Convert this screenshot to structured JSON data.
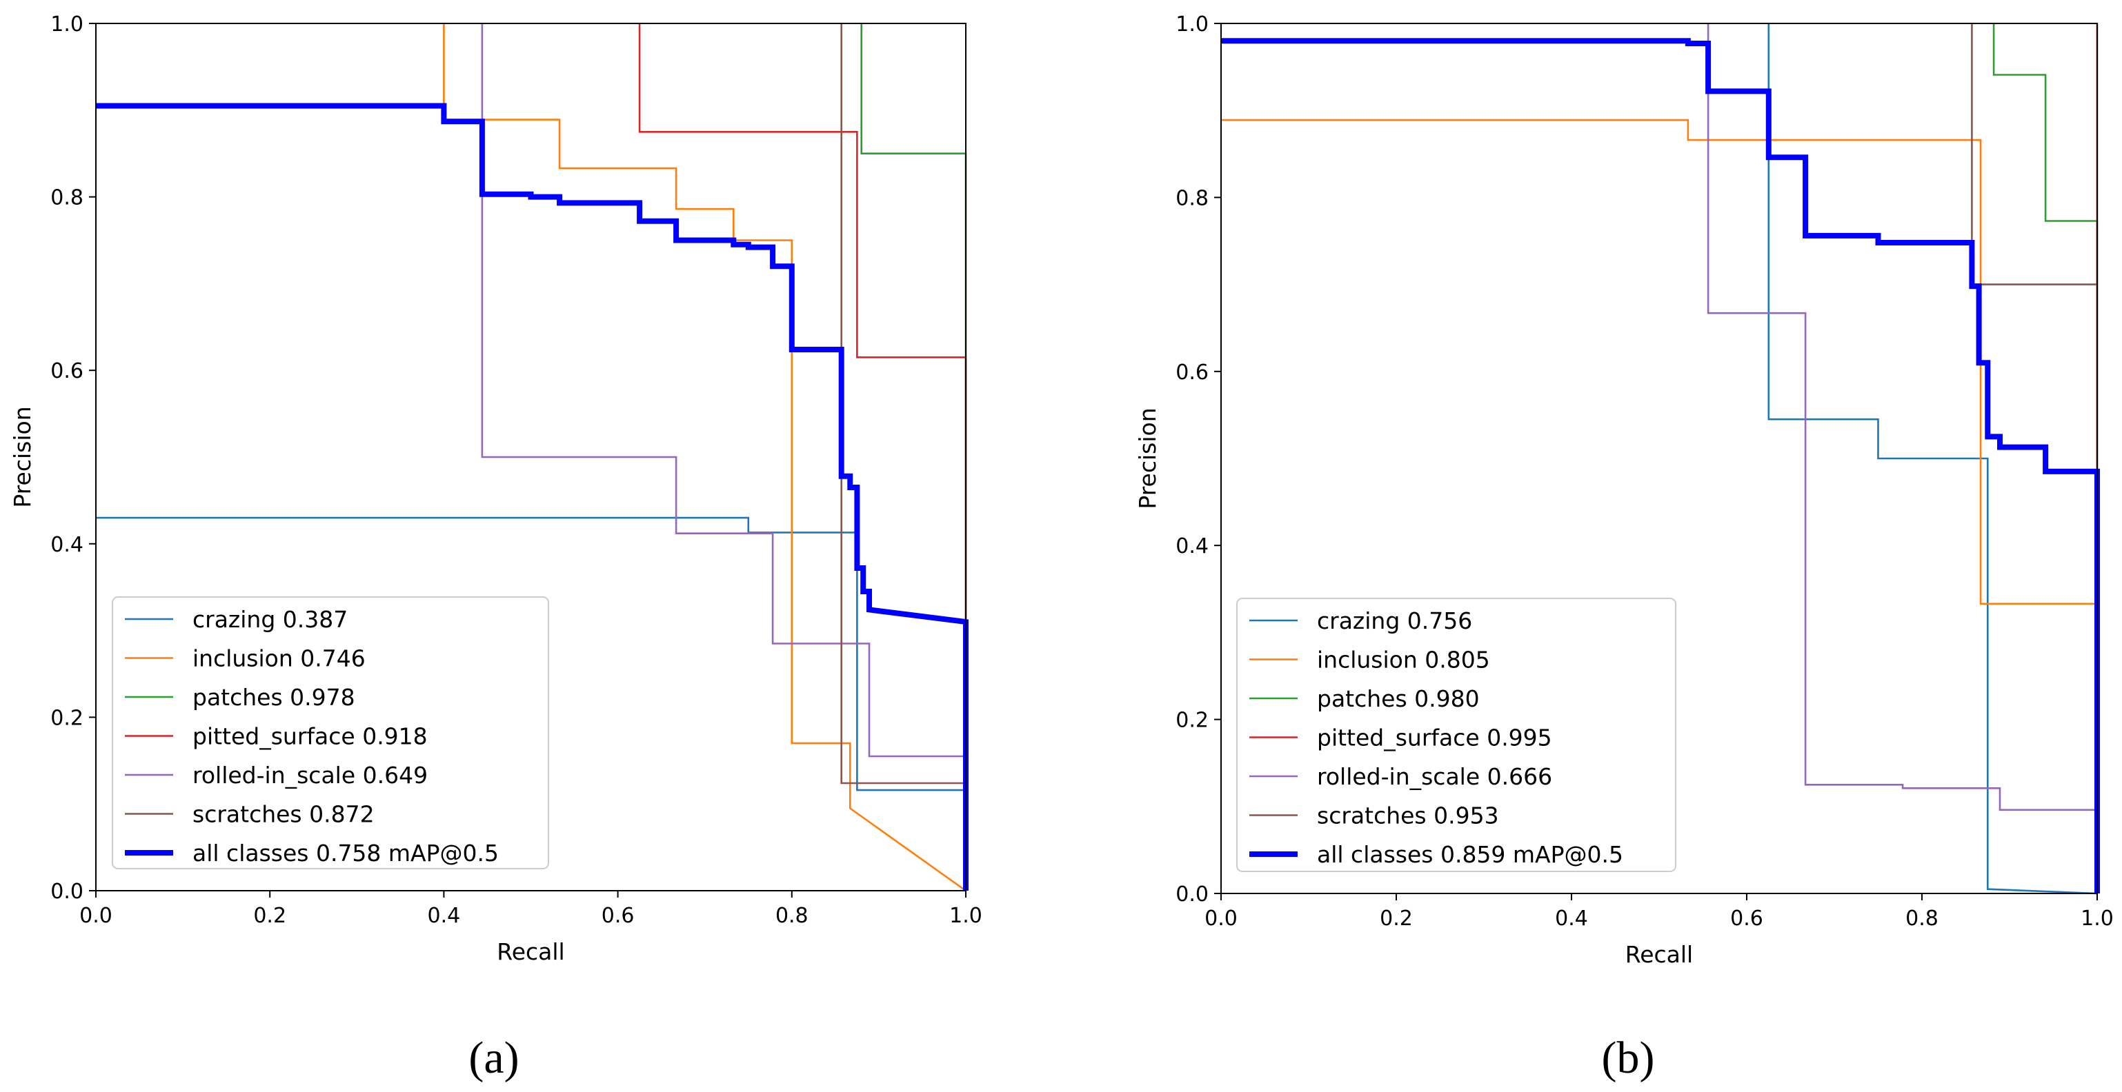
{
  "chart_data": [
    {
      "type": "line",
      "panel_label": "(a)",
      "xlabel": "Recall",
      "ylabel": "Precision",
      "xlim": [
        0,
        1
      ],
      "ylim": [
        0,
        1
      ],
      "xticks": [
        "0.0",
        "0.2",
        "0.4",
        "0.6",
        "0.8",
        "1.0"
      ],
      "yticks": [
        "0.0",
        "0.2",
        "0.4",
        "0.6",
        "0.8",
        "1.0"
      ],
      "legend_position": "lower-left",
      "series": [
        {
          "name": "crazing",
          "label": "crazing 0.387",
          "color": "#1f77b4",
          "width": "thin",
          "x": [
            0,
            0.75,
            0.75,
            0.875,
            0.875,
            1.0,
            1.0
          ],
          "y": [
            0.43,
            0.43,
            0.413,
            0.413,
            0.116,
            0.116,
            0.0
          ]
        },
        {
          "name": "inclusion",
          "label": "inclusion 0.746",
          "color": "#ff7f0e",
          "width": "thin",
          "x": [
            0.4,
            0.4,
            0.533,
            0.533,
            0.667,
            0.667,
            0.733,
            0.733,
            0.8,
            0.8,
            0.867,
            0.867,
            1.0
          ],
          "y": [
            1.0,
            0.889,
            0.889,
            0.833,
            0.833,
            0.786,
            0.786,
            0.75,
            0.75,
            0.17,
            0.17,
            0.095,
            0.0
          ]
        },
        {
          "name": "patches",
          "label": "patches 0.978",
          "color": "#2ca02c",
          "width": "thin",
          "x": [
            0.88,
            0.88,
            1.0,
            1.0
          ],
          "y": [
            1.0,
            0.85,
            0.85,
            0.0
          ]
        },
        {
          "name": "pitted_surface",
          "label": "pitted_surface 0.918",
          "color": "#d62728",
          "width": "thin",
          "x": [
            0.625,
            0.625,
            0.875,
            0.875,
            1.0,
            1.0
          ],
          "y": [
            1.0,
            0.875,
            0.875,
            0.615,
            0.615,
            0.0
          ]
        },
        {
          "name": "rolled-in_scale",
          "label": "rolled-in_scale 0.649",
          "color": "#9467bd",
          "width": "thin",
          "x": [
            0.444,
            0.444,
            0.667,
            0.667,
            0.778,
            0.778,
            0.889,
            0.889,
            1.0,
            1.0
          ],
          "y": [
            1.0,
            0.5,
            0.5,
            0.412,
            0.412,
            0.285,
            0.285,
            0.155,
            0.155,
            0.0
          ]
        },
        {
          "name": "scratches",
          "label": "scratches 0.872",
          "color": "#8c564b",
          "width": "thin",
          "x": [
            0.857,
            0.857,
            1.0,
            1.0
          ],
          "y": [
            1.0,
            0.124,
            0.124,
            0.0
          ]
        },
        {
          "name": "all-classes",
          "label": "all classes 0.758 mAP@0.5",
          "color": "#0000ff",
          "width": "thick",
          "x": [
            0.0,
            0.4,
            0.4,
            0.444,
            0.444,
            0.5,
            0.5,
            0.533,
            0.533,
            0.625,
            0.625,
            0.667,
            0.667,
            0.733,
            0.733,
            0.75,
            0.75,
            0.778,
            0.778,
            0.8,
            0.8,
            0.857,
            0.857,
            0.867,
            0.867,
            0.875,
            0.875,
            0.882,
            0.882,
            0.889,
            0.889,
            1.0,
            1.0
          ],
          "y": [
            0.905,
            0.905,
            0.887,
            0.887,
            0.803,
            0.803,
            0.8,
            0.8,
            0.793,
            0.793,
            0.772,
            0.772,
            0.75,
            0.75,
            0.745,
            0.745,
            0.742,
            0.742,
            0.72,
            0.72,
            0.624,
            0.624,
            0.478,
            0.478,
            0.465,
            0.465,
            0.372,
            0.372,
            0.345,
            0.345,
            0.324,
            0.31,
            0.0
          ]
        }
      ]
    },
    {
      "type": "line",
      "panel_label": "(b)",
      "xlabel": "Recall",
      "ylabel": "Precision",
      "xlim": [
        0,
        1
      ],
      "ylim": [
        0,
        1
      ],
      "xticks": [
        "0.0",
        "0.2",
        "0.4",
        "0.6",
        "0.8",
        "1.0"
      ],
      "yticks": [
        "0.0",
        "0.2",
        "0.4",
        "0.6",
        "0.8",
        "1.0"
      ],
      "legend_position": "lower-left",
      "series": [
        {
          "name": "crazing",
          "label": "crazing 0.756",
          "color": "#1f77b4",
          "width": "thin",
          "x": [
            0.625,
            0.625,
            0.75,
            0.75,
            0.875,
            0.875,
            1.0
          ],
          "y": [
            1.0,
            0.545,
            0.545,
            0.5,
            0.5,
            0.005,
            0.0
          ]
        },
        {
          "name": "inclusion",
          "label": "inclusion 0.805",
          "color": "#ff7f0e",
          "width": "thin",
          "x": [
            0.0,
            0.533,
            0.533,
            0.867,
            0.867,
            1.0
          ],
          "y": [
            0.889,
            0.889,
            0.866,
            0.866,
            0.333,
            0.333
          ]
        },
        {
          "name": "patches",
          "label": "patches 0.980",
          "color": "#2ca02c",
          "width": "thin",
          "x": [
            0.882,
            0.882,
            0.941,
            0.941,
            1.0,
            1.0
          ],
          "y": [
            1.0,
            0.941,
            0.941,
            0.773,
            0.773,
            0.0
          ]
        },
        {
          "name": "pitted_surface",
          "label": "pitted_surface 0.995",
          "color": "#d62728",
          "width": "thin",
          "x": [
            1.0,
            1.0
          ],
          "y": [
            1.0,
            0.0
          ]
        },
        {
          "name": "rolled-in_scale",
          "label": "rolled-in_scale 0.666",
          "color": "#9467bd",
          "width": "thin",
          "x": [
            0.556,
            0.556,
            0.667,
            0.667,
            0.778,
            0.778,
            0.889,
            0.889,
            1.0
          ],
          "y": [
            1.0,
            0.667,
            0.667,
            0.125,
            0.125,
            0.121,
            0.121,
            0.096,
            0.096
          ]
        },
        {
          "name": "scratches",
          "label": "scratches 0.953",
          "color": "#8c564b",
          "width": "thin",
          "x": [
            0.857,
            0.857,
            1.0
          ],
          "y": [
            1.0,
            0.7,
            0.7
          ]
        },
        {
          "name": "all-classes",
          "label": "all classes 0.859 mAP@0.5",
          "color": "#0000ff",
          "width": "thick",
          "x": [
            0.0,
            0.533,
            0.533,
            0.556,
            0.556,
            0.625,
            0.625,
            0.667,
            0.667,
            0.75,
            0.75,
            0.857,
            0.857,
            0.865,
            0.865,
            0.875,
            0.875,
            0.889,
            0.889,
            0.941,
            0.941,
            1.0,
            1.0
          ],
          "y": [
            0.98,
            0.98,
            0.977,
            0.977,
            0.922,
            0.922,
            0.846,
            0.846,
            0.756,
            0.756,
            0.748,
            0.748,
            0.698,
            0.698,
            0.61,
            0.61,
            0.525,
            0.525,
            0.513,
            0.513,
            0.485,
            0.485,
            0.0
          ]
        }
      ]
    }
  ]
}
